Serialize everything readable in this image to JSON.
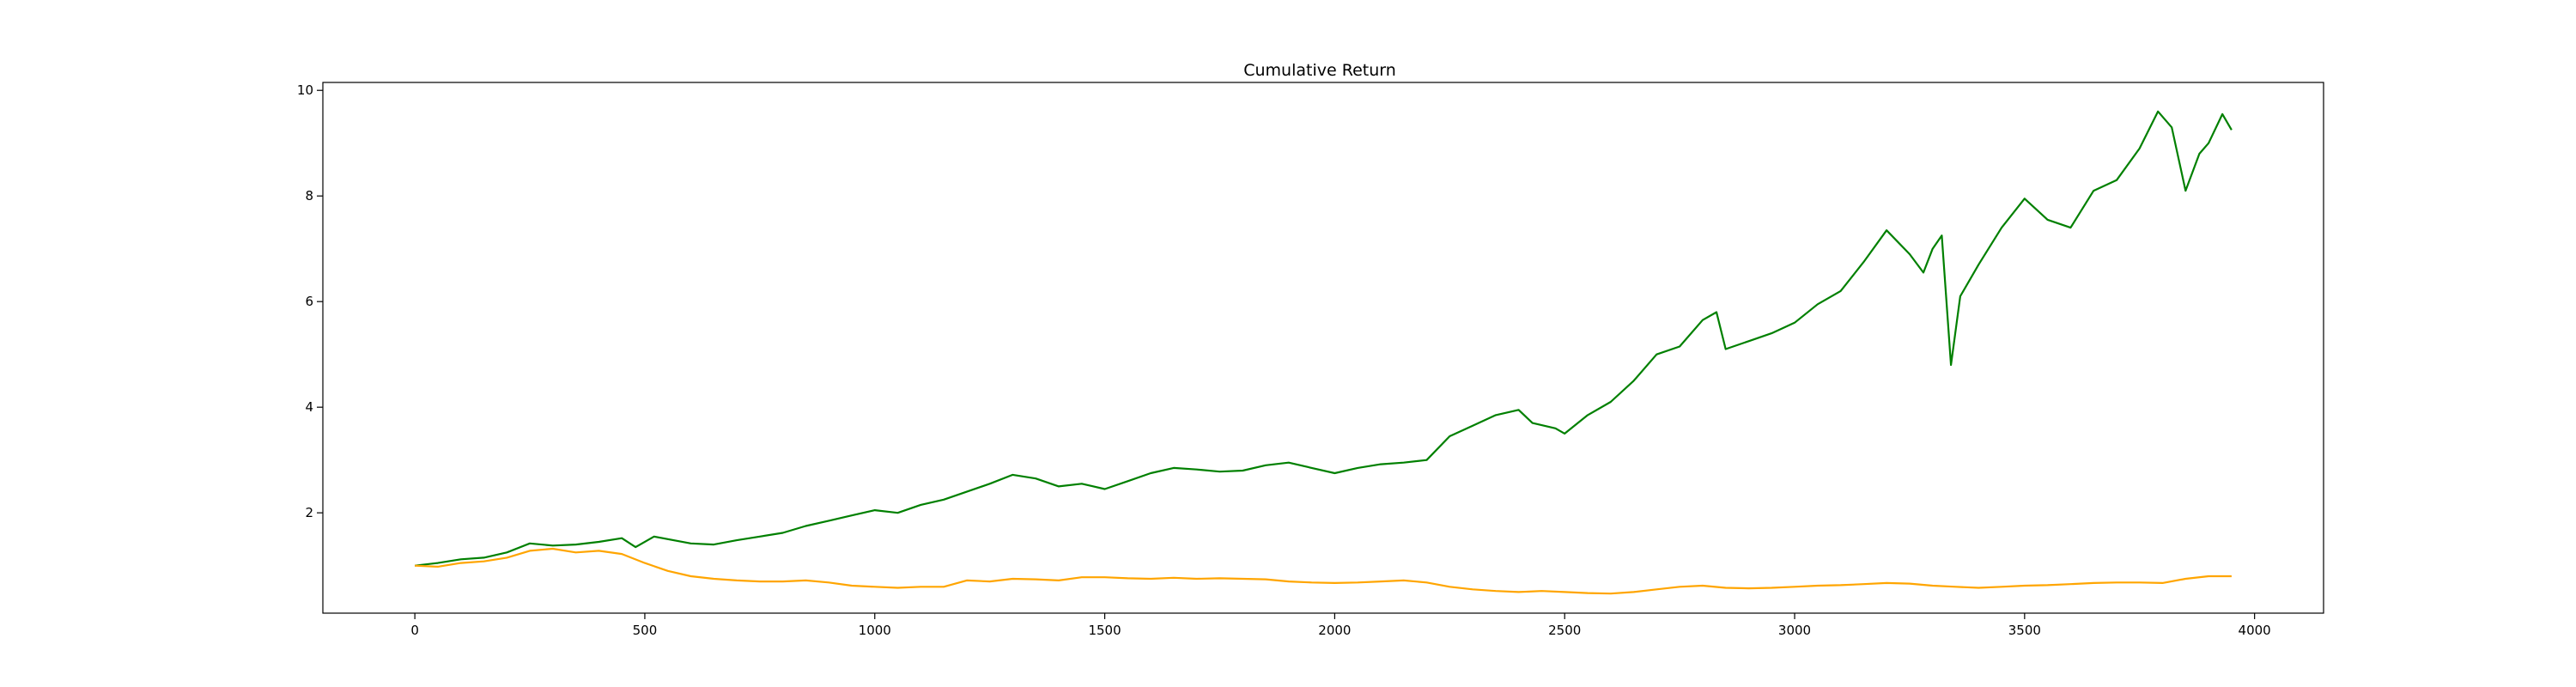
{
  "chart_data": {
    "type": "line",
    "title": "Cumulative Return",
    "xlabel": "",
    "ylabel": "",
    "xlim": [
      -200,
      4150
    ],
    "ylim": [
      0.1,
      10.15
    ],
    "x_ticks": [
      0,
      500,
      1000,
      1500,
      2000,
      2500,
      3000,
      3500,
      4000
    ],
    "x_tick_labels": [
      "0",
      "500",
      "1000",
      "1500",
      "2000",
      "2500",
      "3000",
      "3500",
      "4000"
    ],
    "y_ticks": [
      2,
      4,
      6,
      8,
      10
    ],
    "y_tick_labels": [
      "2",
      "4",
      "6",
      "8",
      "10"
    ],
    "grid": false,
    "legend": "none",
    "series": [
      {
        "color": "#008000",
        "points": [
          [
            0,
            1.0
          ],
          [
            50,
            1.05
          ],
          [
            100,
            1.12
          ],
          [
            150,
            1.15
          ],
          [
            200,
            1.25
          ],
          [
            250,
            1.42
          ],
          [
            300,
            1.38
          ],
          [
            350,
            1.4
          ],
          [
            400,
            1.45
          ],
          [
            450,
            1.52
          ],
          [
            480,
            1.35
          ],
          [
            520,
            1.55
          ],
          [
            600,
            1.42
          ],
          [
            650,
            1.4
          ],
          [
            700,
            1.48
          ],
          [
            750,
            1.55
          ],
          [
            800,
            1.62
          ],
          [
            850,
            1.75
          ],
          [
            900,
            1.85
          ],
          [
            950,
            1.95
          ],
          [
            1000,
            2.05
          ],
          [
            1050,
            2.0
          ],
          [
            1100,
            2.15
          ],
          [
            1150,
            2.25
          ],
          [
            1200,
            2.4
          ],
          [
            1250,
            2.55
          ],
          [
            1300,
            2.72
          ],
          [
            1350,
            2.65
          ],
          [
            1400,
            2.5
          ],
          [
            1450,
            2.55
          ],
          [
            1500,
            2.45
          ],
          [
            1550,
            2.6
          ],
          [
            1600,
            2.75
          ],
          [
            1650,
            2.85
          ],
          [
            1700,
            2.82
          ],
          [
            1750,
            2.78
          ],
          [
            1800,
            2.8
          ],
          [
            1850,
            2.9
          ],
          [
            1900,
            2.95
          ],
          [
            1950,
            2.85
          ],
          [
            2000,
            2.75
          ],
          [
            2050,
            2.85
          ],
          [
            2100,
            2.92
          ],
          [
            2150,
            2.95
          ],
          [
            2200,
            3.0
          ],
          [
            2250,
            3.45
          ],
          [
            2300,
            3.65
          ],
          [
            2350,
            3.85
          ],
          [
            2400,
            3.95
          ],
          [
            2430,
            3.7
          ],
          [
            2480,
            3.6
          ],
          [
            2500,
            3.5
          ],
          [
            2550,
            3.85
          ],
          [
            2600,
            4.1
          ],
          [
            2650,
            4.5
          ],
          [
            2700,
            5.0
          ],
          [
            2750,
            5.15
          ],
          [
            2800,
            5.65
          ],
          [
            2830,
            5.8
          ],
          [
            2850,
            5.1
          ],
          [
            2900,
            5.25
          ],
          [
            2950,
            5.4
          ],
          [
            3000,
            5.6
          ],
          [
            3050,
            5.95
          ],
          [
            3100,
            6.2
          ],
          [
            3150,
            6.75
          ],
          [
            3200,
            7.35
          ],
          [
            3250,
            6.9
          ],
          [
            3280,
            6.55
          ],
          [
            3300,
            7.0
          ],
          [
            3320,
            7.25
          ],
          [
            3340,
            4.8
          ],
          [
            3360,
            6.1
          ],
          [
            3400,
            6.7
          ],
          [
            3450,
            7.4
          ],
          [
            3500,
            7.95
          ],
          [
            3550,
            7.55
          ],
          [
            3600,
            7.4
          ],
          [
            3650,
            8.1
          ],
          [
            3700,
            8.3
          ],
          [
            3750,
            8.9
          ],
          [
            3790,
            9.6
          ],
          [
            3820,
            9.3
          ],
          [
            3850,
            8.1
          ],
          [
            3880,
            8.8
          ],
          [
            3900,
            9.0
          ],
          [
            3930,
            9.55
          ],
          [
            3950,
            9.25
          ]
        ]
      },
      {
        "color": "#FFA500",
        "points": [
          [
            0,
            1.0
          ],
          [
            50,
            0.98
          ],
          [
            100,
            1.05
          ],
          [
            150,
            1.08
          ],
          [
            200,
            1.15
          ],
          [
            250,
            1.28
          ],
          [
            300,
            1.32
          ],
          [
            350,
            1.25
          ],
          [
            400,
            1.28
          ],
          [
            450,
            1.22
          ],
          [
            500,
            1.05
          ],
          [
            550,
            0.9
          ],
          [
            600,
            0.8
          ],
          [
            650,
            0.75
          ],
          [
            700,
            0.72
          ],
          [
            750,
            0.7
          ],
          [
            800,
            0.7
          ],
          [
            850,
            0.72
          ],
          [
            900,
            0.68
          ],
          [
            950,
            0.62
          ],
          [
            1000,
            0.6
          ],
          [
            1050,
            0.58
          ],
          [
            1100,
            0.6
          ],
          [
            1150,
            0.6
          ],
          [
            1200,
            0.72
          ],
          [
            1250,
            0.7
          ],
          [
            1300,
            0.75
          ],
          [
            1350,
            0.74
          ],
          [
            1400,
            0.72
          ],
          [
            1450,
            0.78
          ],
          [
            1500,
            0.78
          ],
          [
            1550,
            0.76
          ],
          [
            1600,
            0.75
          ],
          [
            1650,
            0.77
          ],
          [
            1700,
            0.75
          ],
          [
            1750,
            0.76
          ],
          [
            1800,
            0.75
          ],
          [
            1850,
            0.74
          ],
          [
            1900,
            0.7
          ],
          [
            1950,
            0.68
          ],
          [
            2000,
            0.67
          ],
          [
            2050,
            0.68
          ],
          [
            2100,
            0.7
          ],
          [
            2150,
            0.72
          ],
          [
            2200,
            0.68
          ],
          [
            2250,
            0.6
          ],
          [
            2300,
            0.55
          ],
          [
            2350,
            0.52
          ],
          [
            2400,
            0.5
          ],
          [
            2450,
            0.52
          ],
          [
            2500,
            0.5
          ],
          [
            2550,
            0.48
          ],
          [
            2600,
            0.47
          ],
          [
            2650,
            0.5
          ],
          [
            2700,
            0.55
          ],
          [
            2750,
            0.6
          ],
          [
            2800,
            0.62
          ],
          [
            2850,
            0.58
          ],
          [
            2900,
            0.57
          ],
          [
            2950,
            0.58
          ],
          [
            3000,
            0.6
          ],
          [
            3050,
            0.62
          ],
          [
            3100,
            0.63
          ],
          [
            3150,
            0.65
          ],
          [
            3200,
            0.67
          ],
          [
            3250,
            0.66
          ],
          [
            3300,
            0.62
          ],
          [
            3350,
            0.6
          ],
          [
            3400,
            0.58
          ],
          [
            3450,
            0.6
          ],
          [
            3500,
            0.62
          ],
          [
            3550,
            0.63
          ],
          [
            3600,
            0.65
          ],
          [
            3650,
            0.67
          ],
          [
            3700,
            0.68
          ],
          [
            3750,
            0.68
          ],
          [
            3800,
            0.67
          ],
          [
            3850,
            0.75
          ],
          [
            3900,
            0.8
          ],
          [
            3950,
            0.8
          ]
        ]
      }
    ]
  }
}
